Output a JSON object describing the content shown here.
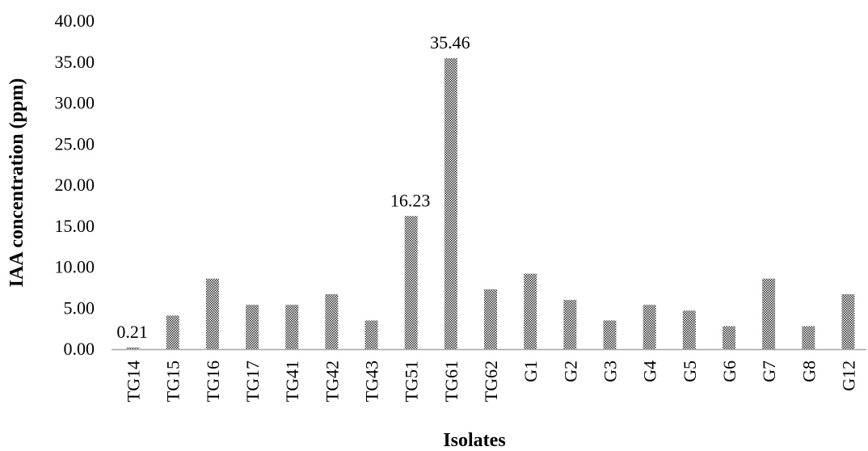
{
  "chart_data": {
    "type": "bar",
    "title": "",
    "xlabel": "Isolates",
    "ylabel": "IAA concentration (ppm)",
    "ylim": [
      0,
      40
    ],
    "y_ticks": [
      "0.00",
      "5.00",
      "10.00",
      "15.00",
      "20.00",
      "25.00",
      "30.00",
      "35.00",
      "40.00"
    ],
    "grid": false,
    "legend": "none",
    "bar_pattern": "dark checkered with dots",
    "categories": [
      "TG14",
      "TG15",
      "TG16",
      "TG17",
      "TG41",
      "TG42",
      "TG43",
      "TG51",
      "TG61",
      "TG62",
      "G1",
      "G2",
      "G3",
      "G4",
      "G5",
      "G6",
      "G7",
      "G8",
      "G12"
    ],
    "values": [
      0.21,
      4.1,
      8.6,
      5.4,
      5.4,
      6.7,
      3.5,
      16.23,
      35.46,
      7.3,
      9.2,
      6.0,
      3.5,
      5.4,
      4.7,
      2.8,
      8.6,
      2.8,
      6.7
    ],
    "data_labels": [
      {
        "category": "TG14",
        "text": "0.21"
      },
      {
        "category": "TG51",
        "text": "16.23"
      },
      {
        "category": "TG61",
        "text": "35.46"
      }
    ]
  }
}
